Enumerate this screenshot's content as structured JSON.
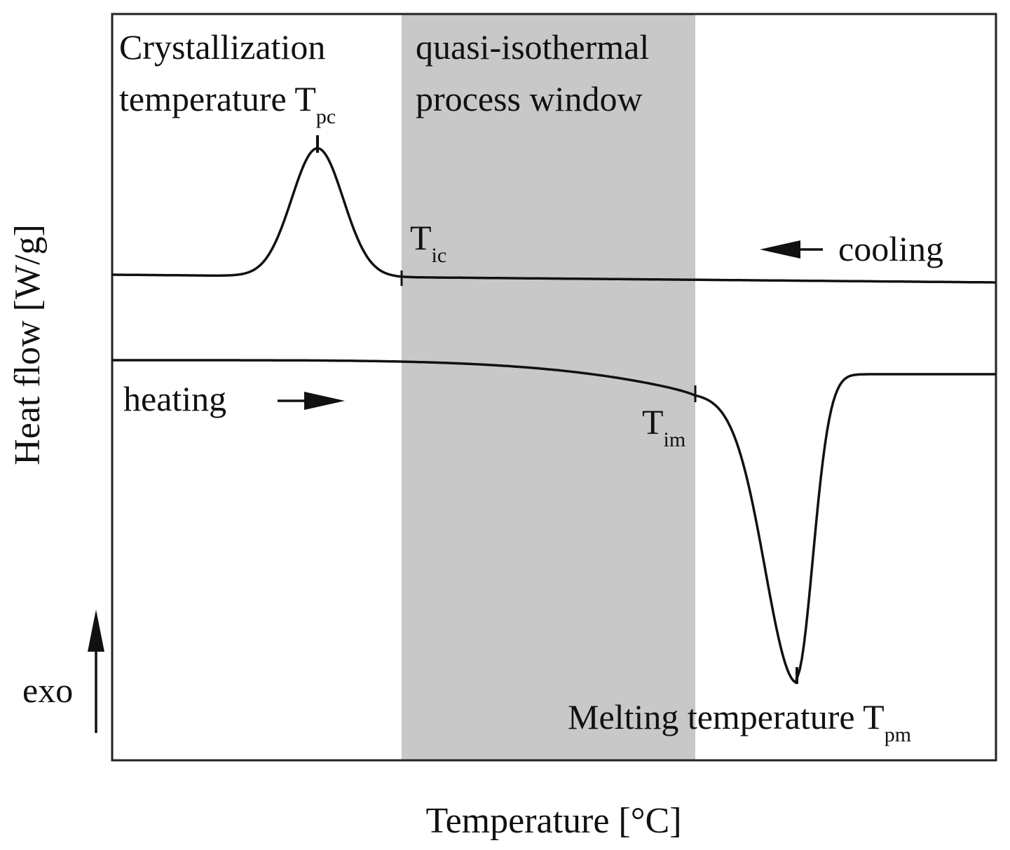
{
  "chart_data": {
    "type": "line",
    "title": "",
    "xlabel": "Temperature [°C]",
    "ylabel": "Heat flow [W/g]",
    "x_ticks_shown": false,
    "y_ticks_shown": false,
    "grid": false,
    "exo_indicator": {
      "label": "exo",
      "direction": "up"
    },
    "shaded_region": {
      "label_line1": "quasi-isothermal",
      "label_line2": "process window",
      "from_marker": "T_ic",
      "to_marker": "T_im",
      "color": "#c8c8c8"
    },
    "series": [
      {
        "name": "cooling",
        "arrow_direction": "left",
        "peak_type": "exothermic",
        "peak_marker": {
          "line1": "Crystallization",
          "line2": "temperature T",
          "subscript": "pc"
        },
        "onset_marker": {
          "main": "T",
          "subscript": "ic"
        }
      },
      {
        "name": "heating",
        "arrow_direction": "right",
        "peak_type": "endothermic",
        "onset_marker": {
          "main": "T",
          "subscript": "im"
        },
        "peak_marker": {
          "main": "Melting temperature T",
          "subscript": "pm"
        }
      }
    ]
  }
}
